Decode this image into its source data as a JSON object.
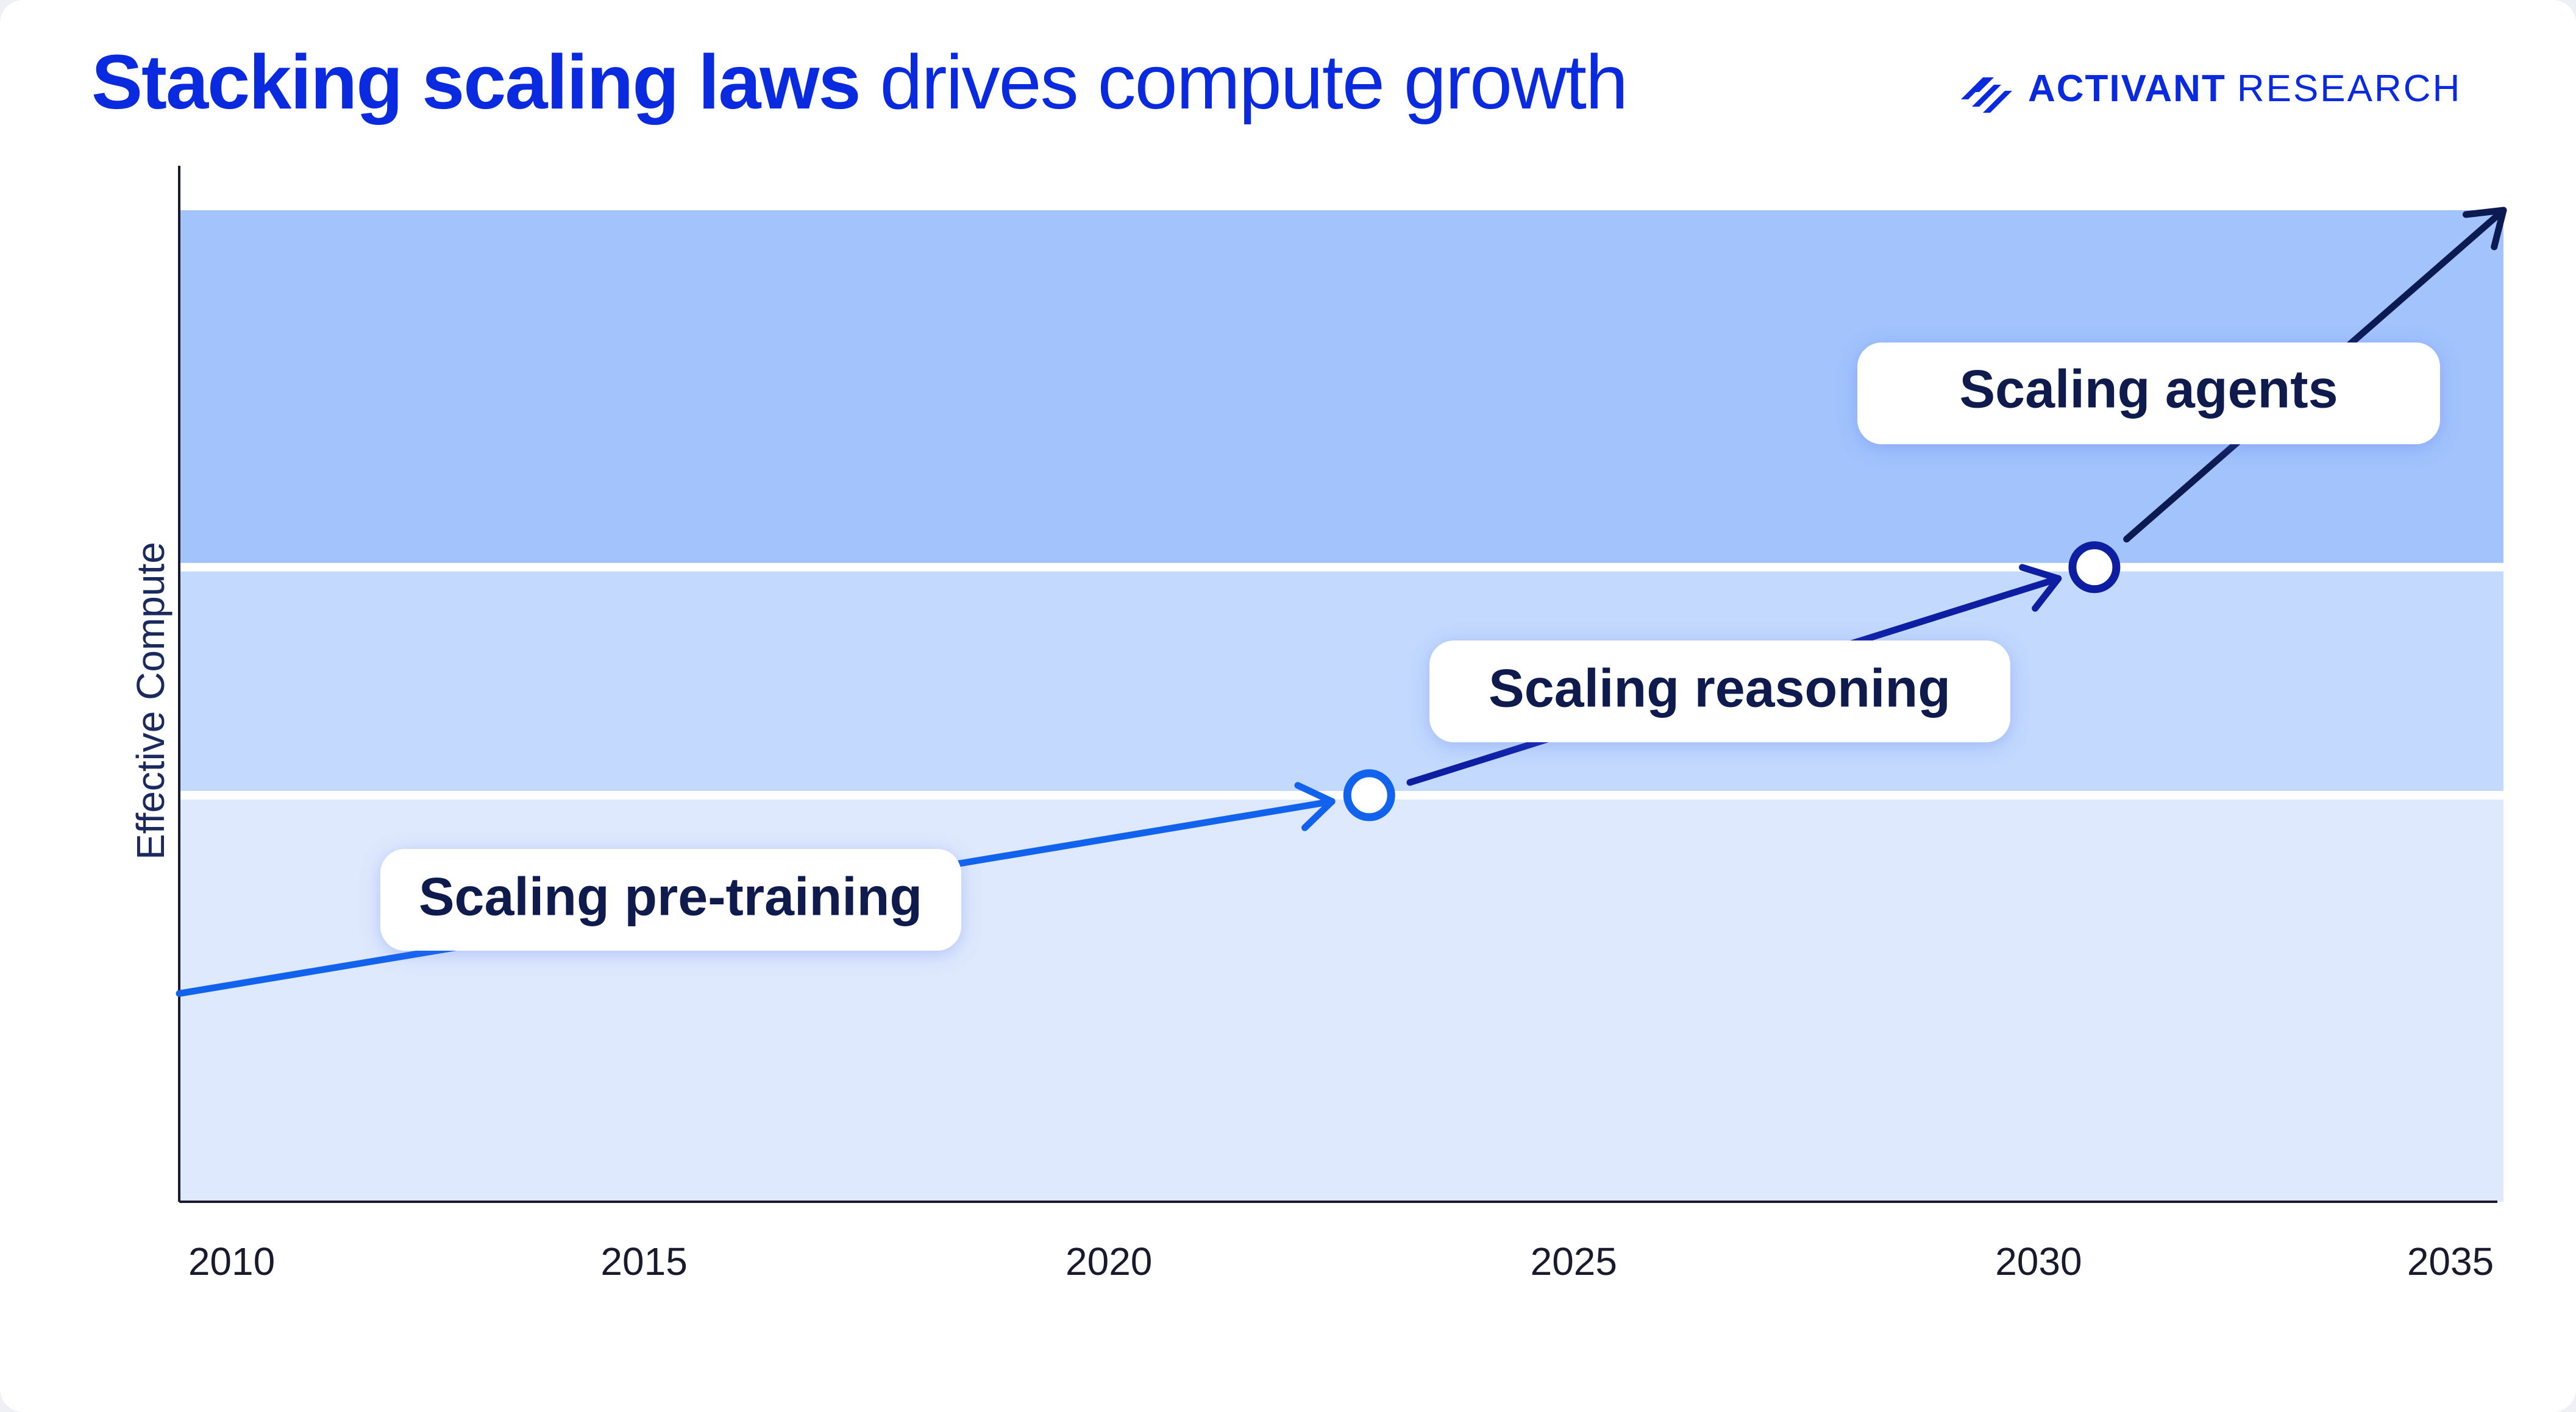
{
  "title": {
    "bold": "Stacking scaling laws",
    "regular": "drives compute growth"
  },
  "brand": {
    "name_bold": "ACTIVANT",
    "name_regular": "RESEARCH",
    "logo": "activant-stripes-icon"
  },
  "colors": {
    "title": "#0a2ae0",
    "band_low": "#dfe9fd",
    "band_mid": "#c3d9fd",
    "band_high": "#a2c3fc",
    "pretraining_line": "#1163ee",
    "reasoning_line": "#0d1ea3",
    "agents_line": "#0c1a52"
  },
  "chart_data": {
    "type": "line",
    "title": "Stacking scaling laws drives compute growth",
    "xlabel": "",
    "ylabel": "Effective Compute",
    "xlim": [
      2010,
      2035
    ],
    "ylim": [
      0,
      100
    ],
    "x_ticks": [
      "2010",
      "2015",
      "2020",
      "2025",
      "2030",
      "2035"
    ],
    "grid": false,
    "bands": [
      {
        "from": 0,
        "to": 41
      },
      {
        "from": 41,
        "to": 64
      },
      {
        "from": 64,
        "to": 100
      }
    ],
    "series": [
      {
        "name": "Scaling pre-training",
        "x": [
          2010,
          2022.8
        ],
        "y": [
          21,
          41
        ]
      },
      {
        "name": "Scaling reasoning",
        "x": [
          2022.8,
          2030.6
        ],
        "y": [
          41,
          64
        ]
      },
      {
        "name": "Scaling agents",
        "x": [
          2030.6,
          2035
        ],
        "y": [
          64,
          100
        ]
      }
    ],
    "transition_points": [
      {
        "x": 2022.8,
        "y": 41
      },
      {
        "x": 2030.6,
        "y": 64
      }
    ]
  }
}
